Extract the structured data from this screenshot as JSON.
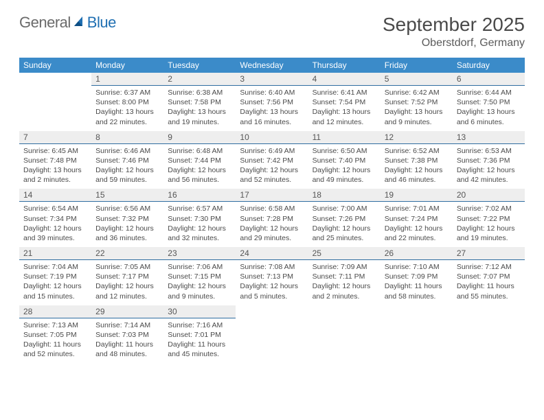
{
  "logo": {
    "word1": "General",
    "word2": "Blue"
  },
  "title": "September 2025",
  "location": "Oberstdorf, Germany",
  "colors": {
    "header_bg": "#3b8bc9",
    "header_text": "#ffffff",
    "daynum_bg": "#eeeeee",
    "daynum_border": "#2e6ca0",
    "text": "#4a4a4a",
    "logo_gray": "#6a6a6a",
    "logo_blue": "#1f6fb2"
  },
  "weekdays": [
    "Sunday",
    "Monday",
    "Tuesday",
    "Wednesday",
    "Thursday",
    "Friday",
    "Saturday"
  ],
  "weeks": [
    [
      null,
      {
        "n": "1",
        "sr": "Sunrise: 6:37 AM",
        "ss": "Sunset: 8:00 PM",
        "dl": "Daylight: 13 hours and 22 minutes."
      },
      {
        "n": "2",
        "sr": "Sunrise: 6:38 AM",
        "ss": "Sunset: 7:58 PM",
        "dl": "Daylight: 13 hours and 19 minutes."
      },
      {
        "n": "3",
        "sr": "Sunrise: 6:40 AM",
        "ss": "Sunset: 7:56 PM",
        "dl": "Daylight: 13 hours and 16 minutes."
      },
      {
        "n": "4",
        "sr": "Sunrise: 6:41 AM",
        "ss": "Sunset: 7:54 PM",
        "dl": "Daylight: 13 hours and 12 minutes."
      },
      {
        "n": "5",
        "sr": "Sunrise: 6:42 AM",
        "ss": "Sunset: 7:52 PM",
        "dl": "Daylight: 13 hours and 9 minutes."
      },
      {
        "n": "6",
        "sr": "Sunrise: 6:44 AM",
        "ss": "Sunset: 7:50 PM",
        "dl": "Daylight: 13 hours and 6 minutes."
      }
    ],
    [
      {
        "n": "7",
        "sr": "Sunrise: 6:45 AM",
        "ss": "Sunset: 7:48 PM",
        "dl": "Daylight: 13 hours and 2 minutes."
      },
      {
        "n": "8",
        "sr": "Sunrise: 6:46 AM",
        "ss": "Sunset: 7:46 PM",
        "dl": "Daylight: 12 hours and 59 minutes."
      },
      {
        "n": "9",
        "sr": "Sunrise: 6:48 AM",
        "ss": "Sunset: 7:44 PM",
        "dl": "Daylight: 12 hours and 56 minutes."
      },
      {
        "n": "10",
        "sr": "Sunrise: 6:49 AM",
        "ss": "Sunset: 7:42 PM",
        "dl": "Daylight: 12 hours and 52 minutes."
      },
      {
        "n": "11",
        "sr": "Sunrise: 6:50 AM",
        "ss": "Sunset: 7:40 PM",
        "dl": "Daylight: 12 hours and 49 minutes."
      },
      {
        "n": "12",
        "sr": "Sunrise: 6:52 AM",
        "ss": "Sunset: 7:38 PM",
        "dl": "Daylight: 12 hours and 46 minutes."
      },
      {
        "n": "13",
        "sr": "Sunrise: 6:53 AM",
        "ss": "Sunset: 7:36 PM",
        "dl": "Daylight: 12 hours and 42 minutes."
      }
    ],
    [
      {
        "n": "14",
        "sr": "Sunrise: 6:54 AM",
        "ss": "Sunset: 7:34 PM",
        "dl": "Daylight: 12 hours and 39 minutes."
      },
      {
        "n": "15",
        "sr": "Sunrise: 6:56 AM",
        "ss": "Sunset: 7:32 PM",
        "dl": "Daylight: 12 hours and 36 minutes."
      },
      {
        "n": "16",
        "sr": "Sunrise: 6:57 AM",
        "ss": "Sunset: 7:30 PM",
        "dl": "Daylight: 12 hours and 32 minutes."
      },
      {
        "n": "17",
        "sr": "Sunrise: 6:58 AM",
        "ss": "Sunset: 7:28 PM",
        "dl": "Daylight: 12 hours and 29 minutes."
      },
      {
        "n": "18",
        "sr": "Sunrise: 7:00 AM",
        "ss": "Sunset: 7:26 PM",
        "dl": "Daylight: 12 hours and 25 minutes."
      },
      {
        "n": "19",
        "sr": "Sunrise: 7:01 AM",
        "ss": "Sunset: 7:24 PM",
        "dl": "Daylight: 12 hours and 22 minutes."
      },
      {
        "n": "20",
        "sr": "Sunrise: 7:02 AM",
        "ss": "Sunset: 7:22 PM",
        "dl": "Daylight: 12 hours and 19 minutes."
      }
    ],
    [
      {
        "n": "21",
        "sr": "Sunrise: 7:04 AM",
        "ss": "Sunset: 7:19 PM",
        "dl": "Daylight: 12 hours and 15 minutes."
      },
      {
        "n": "22",
        "sr": "Sunrise: 7:05 AM",
        "ss": "Sunset: 7:17 PM",
        "dl": "Daylight: 12 hours and 12 minutes."
      },
      {
        "n": "23",
        "sr": "Sunrise: 7:06 AM",
        "ss": "Sunset: 7:15 PM",
        "dl": "Daylight: 12 hours and 9 minutes."
      },
      {
        "n": "24",
        "sr": "Sunrise: 7:08 AM",
        "ss": "Sunset: 7:13 PM",
        "dl": "Daylight: 12 hours and 5 minutes."
      },
      {
        "n": "25",
        "sr": "Sunrise: 7:09 AM",
        "ss": "Sunset: 7:11 PM",
        "dl": "Daylight: 12 hours and 2 minutes."
      },
      {
        "n": "26",
        "sr": "Sunrise: 7:10 AM",
        "ss": "Sunset: 7:09 PM",
        "dl": "Daylight: 11 hours and 58 minutes."
      },
      {
        "n": "27",
        "sr": "Sunrise: 7:12 AM",
        "ss": "Sunset: 7:07 PM",
        "dl": "Daylight: 11 hours and 55 minutes."
      }
    ],
    [
      {
        "n": "28",
        "sr": "Sunrise: 7:13 AM",
        "ss": "Sunset: 7:05 PM",
        "dl": "Daylight: 11 hours and 52 minutes."
      },
      {
        "n": "29",
        "sr": "Sunrise: 7:14 AM",
        "ss": "Sunset: 7:03 PM",
        "dl": "Daylight: 11 hours and 48 minutes."
      },
      {
        "n": "30",
        "sr": "Sunrise: 7:16 AM",
        "ss": "Sunset: 7:01 PM",
        "dl": "Daylight: 11 hours and 45 minutes."
      },
      null,
      null,
      null,
      null
    ]
  ]
}
